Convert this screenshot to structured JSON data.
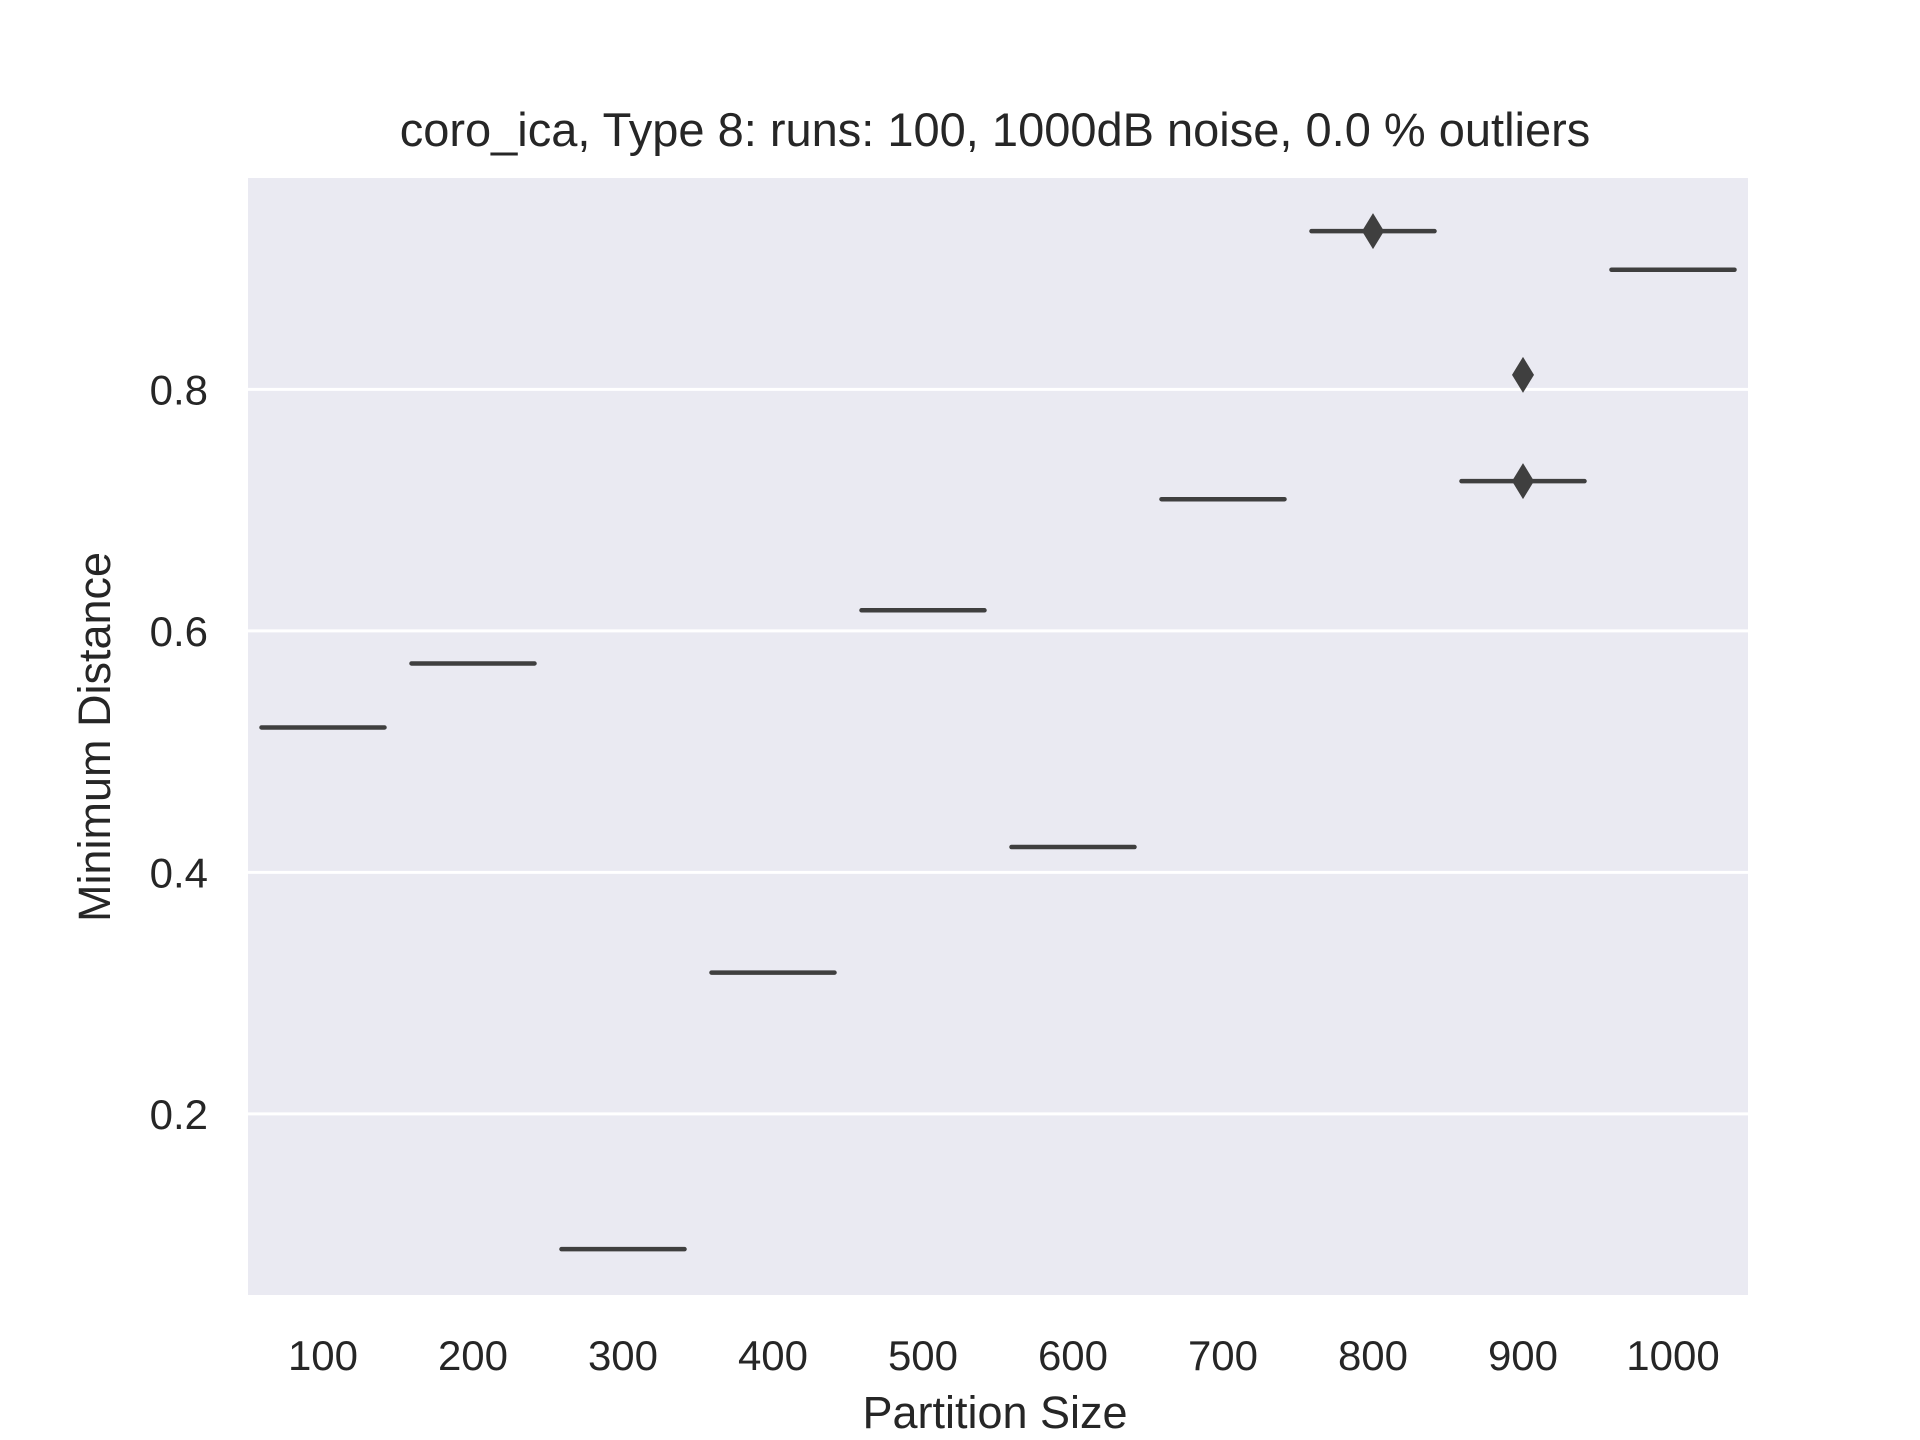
{
  "chart_data": {
    "type": "box",
    "title": "coro_ica,  Type 8:  runs: 100, 1000dB noise, 0.0 % outliers",
    "xlabel": "Partition Size",
    "ylabel": "Minimum Distance",
    "categories": [
      "100",
      "200",
      "300",
      "400",
      "500",
      "600",
      "700",
      "800",
      "900",
      "1000"
    ],
    "medians": [
      0.52,
      0.573,
      0.088,
      0.317,
      0.617,
      0.421,
      0.709,
      0.931,
      0.724,
      0.899
    ],
    "outliers": [
      [],
      [],
      [],
      [],
      [],
      [],
      [],
      [
        0.931
      ],
      [
        0.724,
        0.812
      ],
      []
    ],
    "yticks": [
      0.2,
      0.4,
      0.6,
      0.8
    ],
    "ylim": [
      0.05,
      0.975
    ],
    "grid": true,
    "colors": {
      "plot_background": "#eaeaf2",
      "grid": "#ffffff",
      "line": "#3f3f3f",
      "text": "#262626"
    }
  }
}
